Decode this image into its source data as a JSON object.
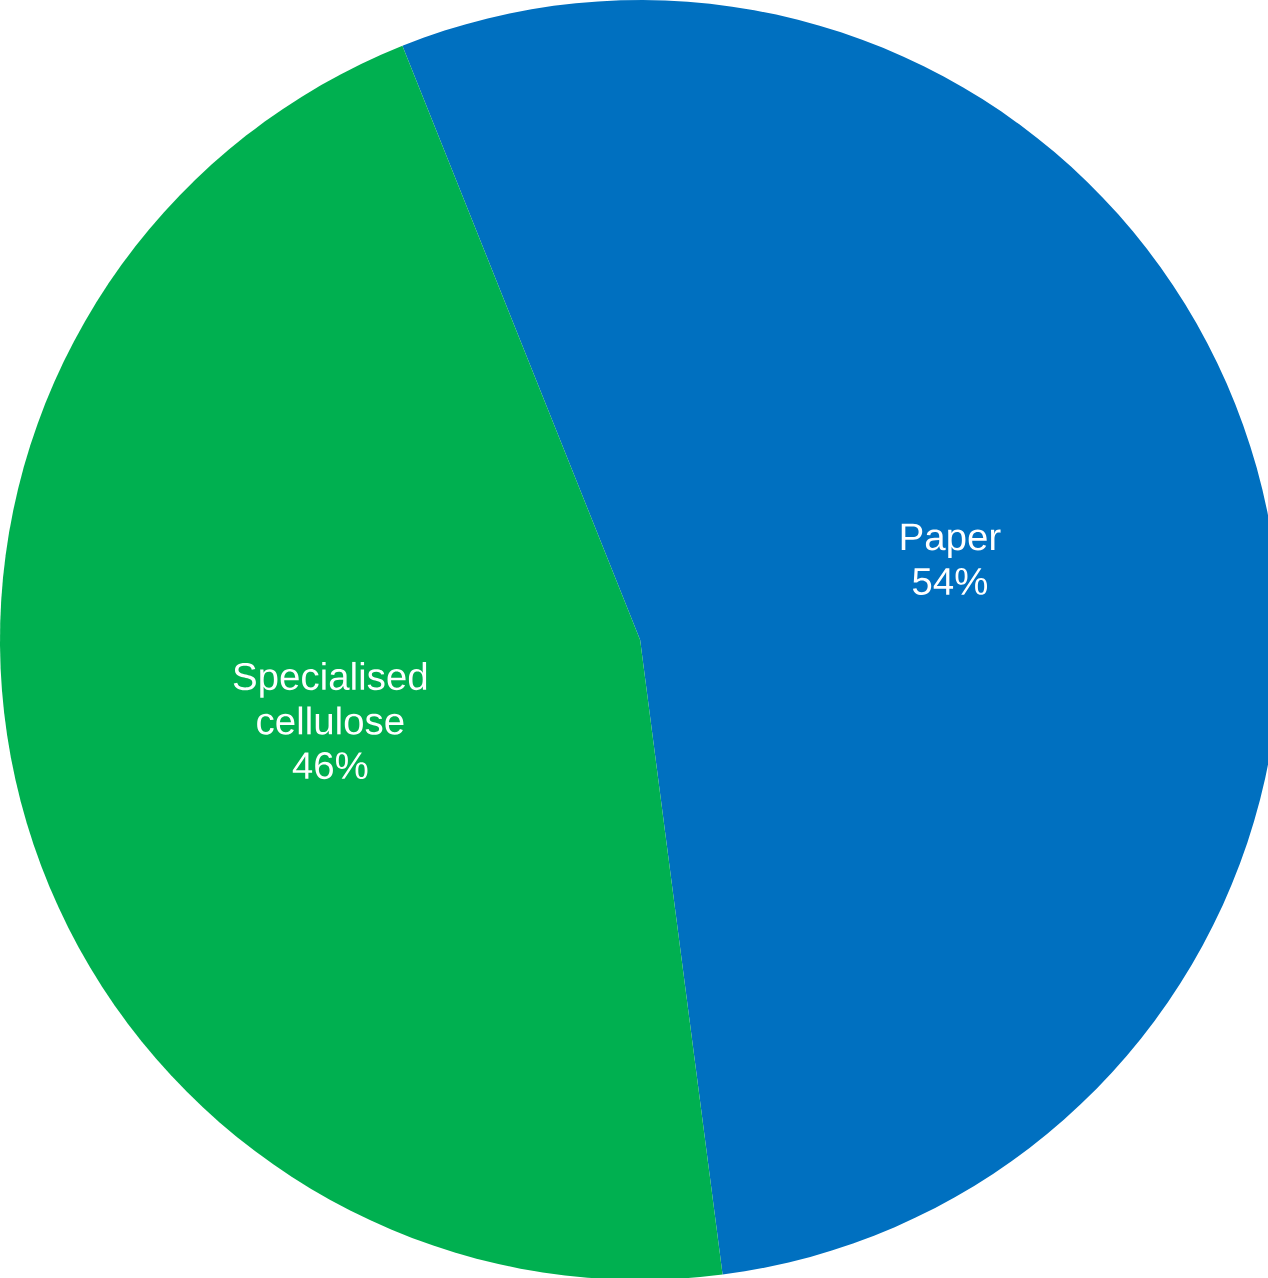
{
  "chart_data": {
    "type": "pie",
    "categories": [
      "Paper",
      "Specialised cellulose"
    ],
    "values": [
      54,
      46
    ],
    "colors": [
      "#0070c0",
      "#00b050"
    ],
    "value_labels": [
      "54%",
      "46%"
    ]
  }
}
